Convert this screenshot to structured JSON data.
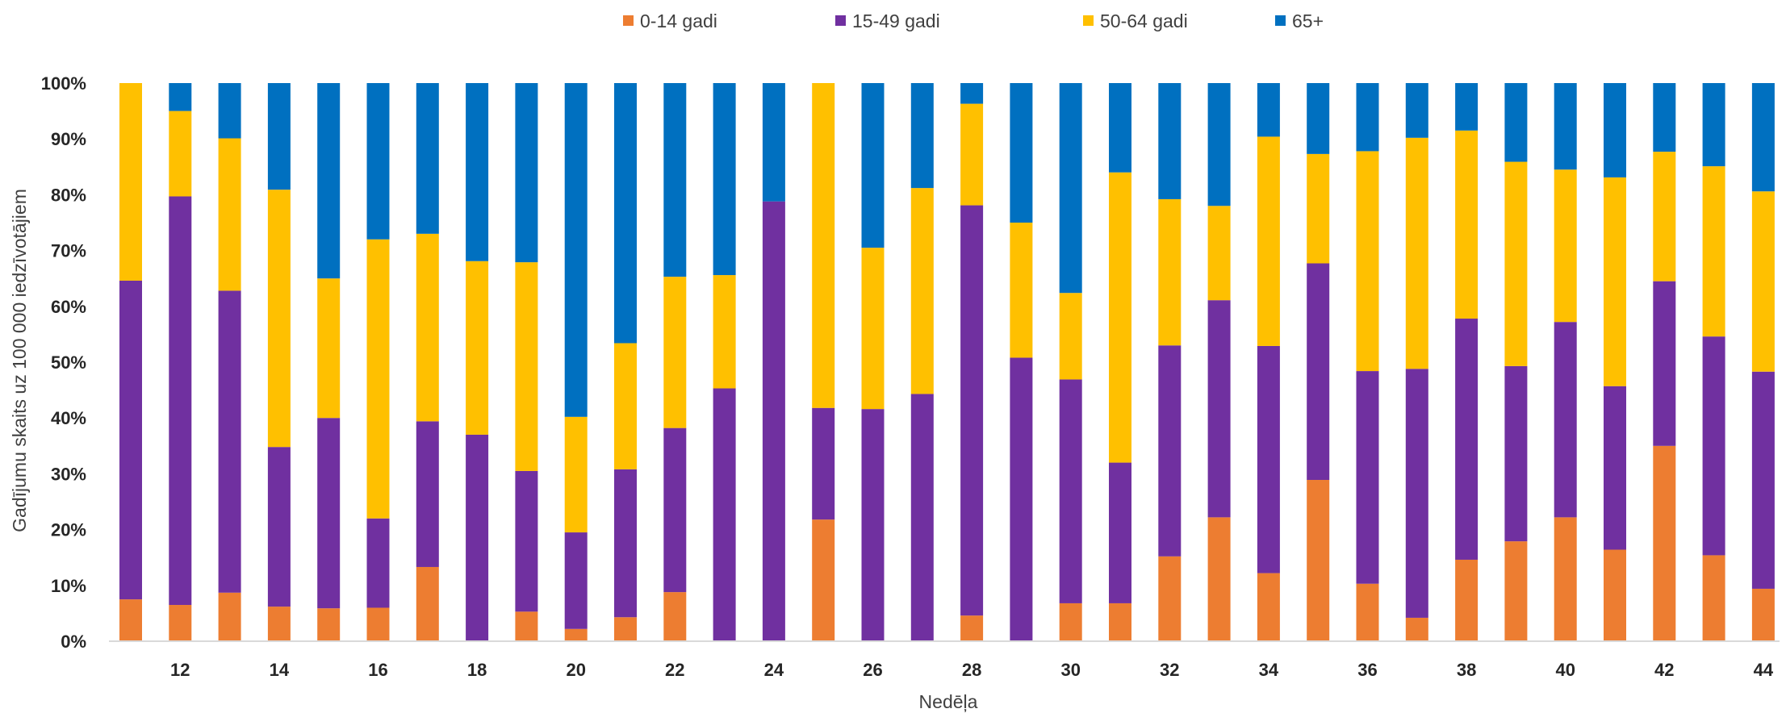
{
  "chart_data": {
    "type": "bar",
    "stacked": true,
    "percent_stacked": true,
    "xlabel": "Nedēļa",
    "ylabel": "Gadījumu skaits uz 100 000 iedzīvotājiem",
    "ylim": [
      0,
      100
    ],
    "y_ticks": [
      "0%",
      "10%",
      "20%",
      "30%",
      "40%",
      "50%",
      "60%",
      "70%",
      "80%",
      "90%",
      "100%"
    ],
    "x_tick_labels": [
      "12",
      "14",
      "16",
      "18",
      "20",
      "22",
      "24",
      "26",
      "28",
      "30",
      "32",
      "34",
      "36",
      "38",
      "40",
      "42",
      "44"
    ],
    "categories": [
      11,
      12,
      13,
      14,
      15,
      16,
      17,
      18,
      19,
      20,
      21,
      22,
      23,
      24,
      25,
      26,
      27,
      28,
      29,
      30,
      31,
      32,
      33,
      34,
      35,
      36,
      37,
      38,
      39,
      40,
      41,
      42,
      43,
      44
    ],
    "legend_position": "top",
    "grid": false,
    "series": [
      {
        "name": "0-14 gadi",
        "color": "#ED7D31",
        "values": [
          7.5,
          6.5,
          8.7,
          6.2,
          5.9,
          6.0,
          13.3,
          0,
          5.3,
          2.2,
          4.3,
          8.8,
          0,
          0,
          21.8,
          0,
          0,
          4.6,
          0,
          6.8,
          6.8,
          15.2,
          22.2,
          12.2,
          28.9,
          10.3,
          4.2,
          14.6,
          17.9,
          22.2,
          16.4,
          35.0,
          15.4,
          9.4
        ]
      },
      {
        "name": "15-49 gadi",
        "color": "#7030A0",
        "values": [
          57.1,
          73.2,
          54.1,
          28.6,
          34.1,
          16.0,
          26.1,
          37.0,
          25.2,
          17.3,
          26.5,
          29.4,
          45.3,
          78.8,
          20.0,
          41.6,
          44.3,
          73.5,
          50.8,
          40.1,
          25.2,
          37.8,
          38.9,
          40.7,
          38.8,
          38.1,
          44.6,
          43.2,
          31.4,
          35.0,
          29.3,
          29.5,
          39.2,
          38.9
        ]
      },
      {
        "name": "50-64 gadi",
        "color": "#FFC000",
        "values": [
          35.4,
          15.3,
          27.3,
          46.1,
          25.0,
          50.0,
          33.6,
          31.1,
          37.4,
          20.7,
          22.6,
          27.1,
          20.3,
          0,
          58.2,
          28.9,
          36.9,
          18.2,
          24.2,
          15.5,
          52.0,
          26.2,
          16.9,
          37.5,
          19.6,
          39.4,
          41.4,
          33.7,
          36.6,
          27.3,
          37.4,
          23.2,
          30.5,
          32.3
        ]
      },
      {
        "name": "65+",
        "color": "#0070C0",
        "values": [
          0,
          5.0,
          9.9,
          19.1,
          35.0,
          28.0,
          27.0,
          31.9,
          32.1,
          59.8,
          46.6,
          34.7,
          34.4,
          21.2,
          0,
          29.5,
          18.8,
          3.7,
          25.0,
          37.6,
          16.0,
          20.8,
          22.0,
          9.6,
          12.7,
          12.2,
          9.8,
          8.5,
          14.1,
          15.5,
          16.9,
          12.3,
          14.9,
          19.4
        ]
      }
    ]
  }
}
